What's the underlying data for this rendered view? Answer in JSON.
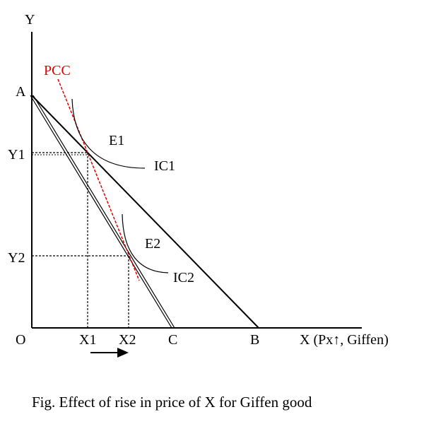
{
  "labels": {
    "y_axis": "Y",
    "x_axis": "X (Px↑, Giffen)",
    "origin": "O",
    "point_a": "A",
    "point_b": "B",
    "point_c": "C",
    "x1": "X1",
    "x2": "X2",
    "y1": "Y1",
    "y2": "Y2",
    "e1": "E1",
    "e2": "E2",
    "ic1": "IC1",
    "ic2": "IC2",
    "pcc": "PCC"
  },
  "caption": "Fig. Effect of rise in price of X for Giffen good",
  "colors": {
    "axis": "#000000",
    "pcc": "#e00000"
  },
  "icons": {
    "movement_arrow": "right-arrow-icon"
  }
}
